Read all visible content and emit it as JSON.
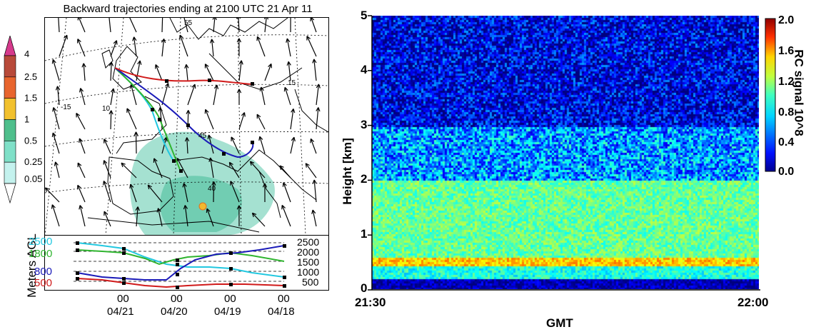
{
  "left_panel": {
    "title": "Backward trajectories ending at 2100 UTC 21 Apr 11",
    "map_labels": [
      "-15",
      "10",
      "15",
      "45",
      "40",
      "55"
    ],
    "colorbar": {
      "levels": [
        "4",
        "2.5",
        "1.5",
        "1",
        "0.5",
        "0.25",
        "0.05"
      ],
      "colors": [
        "#d63a8c",
        "#b84a3a",
        "#e8652e",
        "#f2c12e",
        "#4fbf8c",
        "#7fe0c8",
        "#c4f2ee"
      ]
    },
    "profile": {
      "ylabel": "Meters AGL",
      "left_levels": [
        {
          "label": "2500",
          "color": "#22c8e0"
        },
        {
          "label": "1800",
          "color": "#2fb42f"
        },
        {
          "label": "800",
          "color": "#1a1ab8"
        },
        {
          "label": "500",
          "color": "#d01a1a"
        }
      ],
      "right_ticks": [
        "2500",
        "2000",
        "1500",
        "1000",
        "500"
      ],
      "x_hours": [
        "00",
        "00",
        "00",
        "00"
      ],
      "x_dates": [
        "04/21",
        "04/20",
        "04/19",
        "04/18"
      ]
    }
  },
  "chart_data": {
    "type": "heatmap",
    "xlabel": "GMT",
    "ylabel": "Height [km]",
    "x_ticks": [
      "21:30",
      "22:00"
    ],
    "y_ticks": [
      "0",
      "1",
      "2",
      "3",
      "4",
      "5"
    ],
    "ylim": [
      0,
      5
    ],
    "colorbar": {
      "label": "RC signal 10^8",
      "ticks": [
        "2.0",
        "1.6",
        "1.2",
        "0.8",
        "0.4",
        "0.0"
      ],
      "range": [
        0.0,
        2.0
      ]
    },
    "layers": [
      {
        "from_km": 0.0,
        "to_km": 0.2,
        "level": 0.1
      },
      {
        "from_km": 0.2,
        "to_km": 0.45,
        "level": 0.8
      },
      {
        "from_km": 0.45,
        "to_km": 0.6,
        "level": 1.35
      },
      {
        "from_km": 0.6,
        "to_km": 2.0,
        "level": 0.95
      },
      {
        "from_km": 2.0,
        "to_km": 3.0,
        "level": 0.55
      },
      {
        "from_km": 3.0,
        "to_km": 5.0,
        "level": 0.2
      }
    ]
  }
}
